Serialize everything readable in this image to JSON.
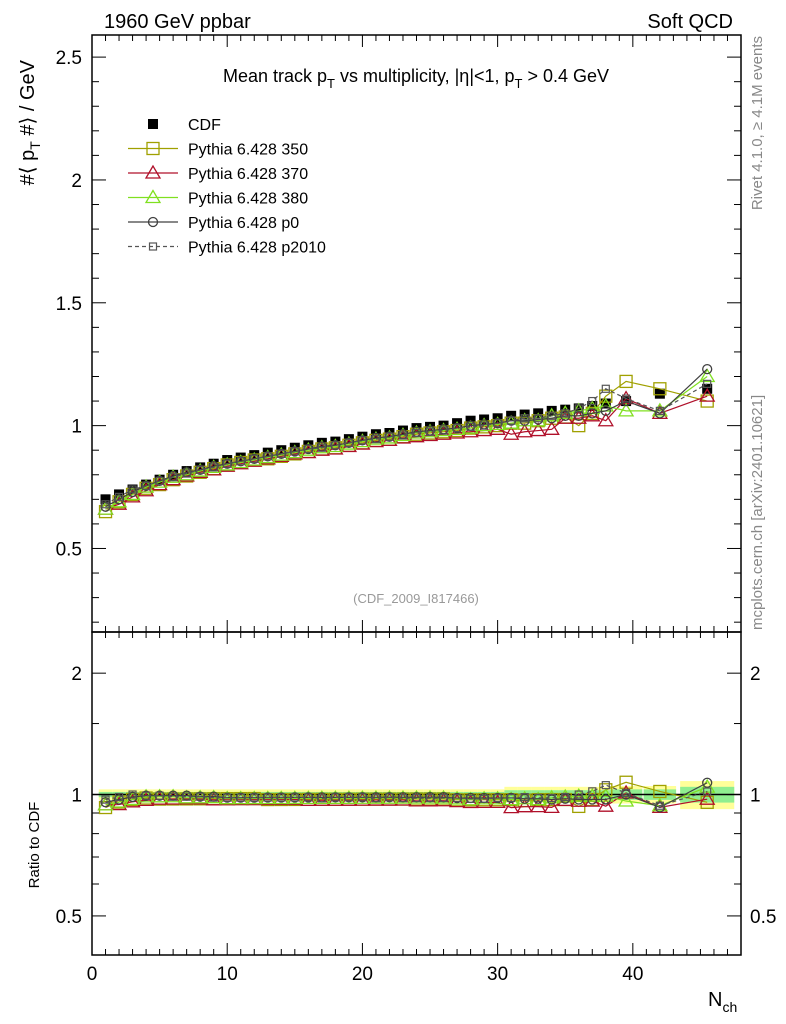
{
  "header": {
    "left": "1960 GeV ppbar",
    "right": "Soft QCD"
  },
  "side": {
    "rivet": "Rivet 4.1.0, ≥ 4.1M events",
    "mcplots": "mcplots.cern.ch [arXiv:2401.10621]"
  },
  "watermark": "(CDF_2009_I817466)",
  "chart_data": {
    "type": "line",
    "title": {
      "pre": "Mean track p",
      "sub1": "T",
      "mid": " vs multiplicity, |η|<1, p",
      "sub2": "T",
      "post": " > 0.4 GeV"
    },
    "ylabel": {
      "pre": "#⟨ p",
      "sub": "T",
      "post": " #⟩ / GeV"
    },
    "xlabel": {
      "main": "N",
      "sub": "ch"
    },
    "ratio_ylabel": "Ratio to CDF",
    "xlim": [
      0,
      48
    ],
    "ylim": [
      0.16,
      2.59
    ],
    "ratio_ylim": [
      0.4,
      2.53
    ],
    "ratio_scale": "log",
    "xticks": [
      "0",
      "10",
      "20",
      "30",
      "40"
    ],
    "yticks": [
      "0.5",
      "1",
      "1.5",
      "2",
      "2.5"
    ],
    "ratio_yticks": [
      "0.5",
      "1",
      "2"
    ],
    "legend_position": "top-left",
    "x": [
      1,
      2,
      3,
      4,
      5,
      6,
      7,
      8,
      9,
      10,
      11,
      12,
      13,
      14,
      15,
      16,
      17,
      18,
      19,
      20,
      21,
      22,
      23,
      24,
      25,
      26,
      27,
      28,
      29,
      30,
      31,
      32,
      33,
      34,
      35,
      36,
      37,
      38,
      39.5,
      42,
      45.5
    ],
    "series": [
      {
        "name": "CDF",
        "color": "#000000",
        "marker": "filled-square",
        "values": [
          0.7,
          0.72,
          0.74,
          0.76,
          0.78,
          0.8,
          0.815,
          0.83,
          0.845,
          0.86,
          0.87,
          0.88,
          0.89,
          0.9,
          0.91,
          0.92,
          0.93,
          0.935,
          0.945,
          0.955,
          0.965,
          0.97,
          0.98,
          0.99,
          0.995,
          1.0,
          1.01,
          1.02,
          1.025,
          1.03,
          1.04,
          1.045,
          1.05,
          1.06,
          1.065,
          1.07,
          1.08,
          1.09,
          1.1,
          1.13,
          1.15
        ]
      },
      {
        "name": "Pythia 6.428 350",
        "color": "#a0a000",
        "marker": "open-square",
        "values": [
          0.65,
          0.69,
          0.72,
          0.745,
          0.76,
          0.78,
          0.795,
          0.81,
          0.825,
          0.84,
          0.85,
          0.86,
          0.865,
          0.875,
          0.885,
          0.895,
          0.905,
          0.91,
          0.92,
          0.93,
          0.94,
          0.945,
          0.955,
          0.965,
          0.97,
          0.975,
          0.98,
          0.99,
          0.995,
          1.0,
          1.01,
          1.01,
          1.02,
          1.03,
          1.035,
          1.0,
          1.05,
          1.12,
          1.18,
          1.15,
          1.1
        ]
      },
      {
        "name": "Pythia 6.428 370",
        "color": "#b0102a",
        "marker": "open-triangle",
        "values": [
          0.66,
          0.68,
          0.71,
          0.735,
          0.76,
          0.78,
          0.795,
          0.81,
          0.82,
          0.835,
          0.845,
          0.855,
          0.865,
          0.875,
          0.885,
          0.89,
          0.9,
          0.905,
          0.915,
          0.925,
          0.935,
          0.94,
          0.95,
          0.955,
          0.96,
          0.965,
          0.97,
          0.975,
          0.98,
          0.985,
          0.965,
          0.975,
          0.98,
          0.985,
          1.03,
          1.03,
          1.04,
          1.02,
          1.11,
          1.05,
          1.12
        ]
      },
      {
        "name": "Pythia 6.428 380",
        "color": "#80e020",
        "marker": "open-triangle",
        "values": [
          0.66,
          0.69,
          0.72,
          0.75,
          0.77,
          0.79,
          0.8,
          0.815,
          0.83,
          0.84,
          0.85,
          0.86,
          0.87,
          0.88,
          0.89,
          0.9,
          0.91,
          0.915,
          0.925,
          0.935,
          0.945,
          0.95,
          0.96,
          0.97,
          0.975,
          0.98,
          0.985,
          0.99,
          1.0,
          1.005,
          1.01,
          1.02,
          1.02,
          1.04,
          1.05,
          1.06,
          1.07,
          1.08,
          1.06,
          1.06,
          1.2
        ]
      },
      {
        "name": "Pythia 6.428 p0",
        "color": "#404040",
        "marker": "open-circle",
        "values": [
          0.67,
          0.7,
          0.73,
          0.755,
          0.775,
          0.795,
          0.81,
          0.82,
          0.835,
          0.845,
          0.855,
          0.865,
          0.875,
          0.885,
          0.895,
          0.905,
          0.915,
          0.92,
          0.93,
          0.94,
          0.95,
          0.955,
          0.965,
          0.975,
          0.98,
          0.985,
          0.99,
          1.0,
          1.005,
          1.01,
          1.02,
          1.02,
          1.025,
          1.03,
          1.04,
          1.04,
          1.05,
          1.06,
          1.1,
          1.05,
          1.23
        ]
      },
      {
        "name": "Pythia 6.428 p2010",
        "color": "#555555",
        "marker": "small-square-dashed",
        "values": [
          0.68,
          0.71,
          0.74,
          0.755,
          0.775,
          0.79,
          0.805,
          0.82,
          0.83,
          0.845,
          0.855,
          0.865,
          0.875,
          0.885,
          0.895,
          0.905,
          0.91,
          0.92,
          0.93,
          0.94,
          0.945,
          0.955,
          0.96,
          0.97,
          0.975,
          0.98,
          0.99,
          0.995,
          1.0,
          1.01,
          1.02,
          1.03,
          1.03,
          1.04,
          1.05,
          1.07,
          1.1,
          1.15,
          1.11,
          1.06,
          1.17
        ]
      }
    ],
    "band_colors": {
      "stat": "#90ee90",
      "total": "#ffff99"
    }
  }
}
